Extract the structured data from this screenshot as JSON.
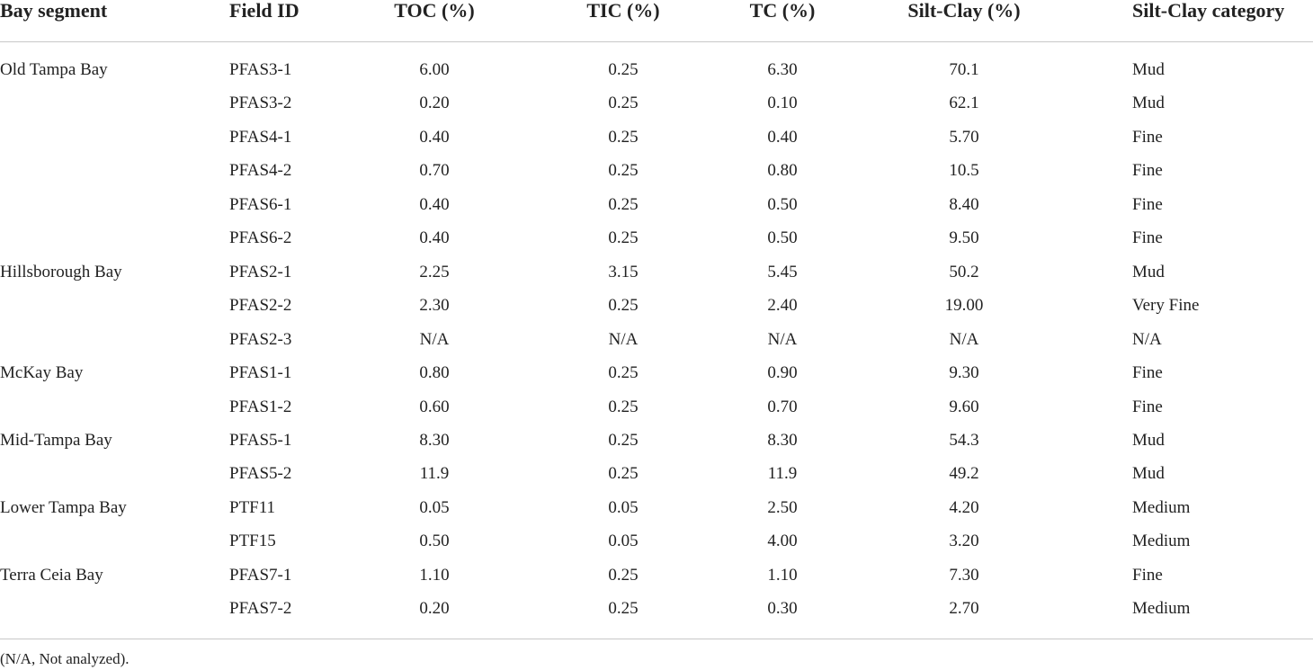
{
  "table": {
    "header": [
      "Bay segment",
      "Field ID",
      "TOC (%)",
      "TIC (%)",
      "TC (%)",
      "Silt-Clay (%)",
      "Silt-Clay category"
    ],
    "groups": [
      {
        "segment": "Old Tampa Bay",
        "rows": [
          [
            "PFAS3-1",
            "6.00",
            "0.25",
            "6.30",
            "70.1",
            "Mud"
          ],
          [
            "PFAS3-2",
            "0.20",
            "0.25",
            "0.10",
            "62.1",
            "Mud"
          ],
          [
            "PFAS4-1",
            "0.40",
            "0.25",
            "0.40",
            "5.70",
            "Fine"
          ],
          [
            "PFAS4-2",
            "0.70",
            "0.25",
            "0.80",
            "10.5",
            "Fine"
          ],
          [
            "PFAS6-1",
            "0.40",
            "0.25",
            "0.50",
            "8.40",
            "Fine"
          ],
          [
            "PFAS6-2",
            "0.40",
            "0.25",
            "0.50",
            "9.50",
            "Fine"
          ]
        ]
      },
      {
        "segment": "Hillsborough Bay",
        "rows": [
          [
            "PFAS2-1",
            "2.25",
            "3.15",
            "5.45",
            "50.2",
            "Mud"
          ],
          [
            "PFAS2-2",
            "2.30",
            "0.25",
            "2.40",
            "19.00",
            "Very Fine"
          ],
          [
            "PFAS2-3",
            "N/A",
            "N/A",
            "N/A",
            "N/A",
            "N/A"
          ]
        ]
      },
      {
        "segment": "McKay Bay",
        "rows": [
          [
            "PFAS1-1",
            "0.80",
            "0.25",
            "0.90",
            "9.30",
            "Fine"
          ],
          [
            "PFAS1-2",
            "0.60",
            "0.25",
            "0.70",
            "9.60",
            "Fine"
          ]
        ]
      },
      {
        "segment": "Mid-Tampa Bay",
        "rows": [
          [
            "PFAS5-1",
            "8.30",
            "0.25",
            "8.30",
            "54.3",
            "Mud"
          ],
          [
            "PFAS5-2",
            "11.9",
            "0.25",
            "11.9",
            "49.2",
            "Mud"
          ]
        ]
      },
      {
        "segment": "Lower Tampa Bay",
        "rows": [
          [
            "PTF11",
            "0.05",
            "0.05",
            "2.50",
            "4.20",
            "Medium"
          ],
          [
            "PTF15",
            "0.50",
            "0.05",
            "4.00",
            "3.20",
            "Medium"
          ]
        ]
      },
      {
        "segment": "Terra Ceia Bay",
        "rows": [
          [
            "PFAS7-1",
            "1.10",
            "0.25",
            "1.10",
            "7.30",
            "Fine"
          ],
          [
            "PFAS7-2",
            "0.20",
            "0.25",
            "0.30",
            "2.70",
            "Medium"
          ]
        ]
      }
    ],
    "footnote": "(N/A, Not analyzed)."
  }
}
